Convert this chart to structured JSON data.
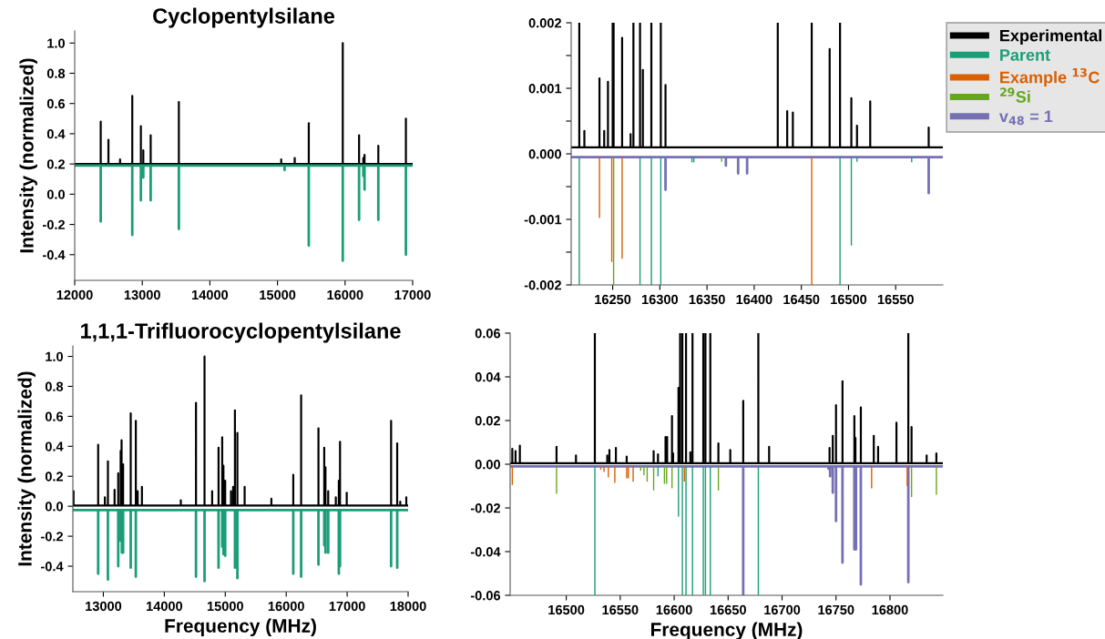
{
  "chart_data": [
    {
      "type": "line",
      "title": "Cyclopentylsilane",
      "ylabel": "Intensity (normalized)",
      "xlim": [
        12000,
        17000
      ],
      "ylim": [
        -0.57,
        1.08
      ],
      "xticks": [
        12000,
        13000,
        14000,
        15000,
        16000,
        17000
      ],
      "yticks": [
        -0.4,
        -0.2,
        {
          "value": 0,
          "label": "0.0"
        },
        0.2,
        0.4,
        0.6,
        0.8,
        {
          "value": 1,
          "label": "1.0"
        }
      ],
      "series": [
        {
          "color": "#000000",
          "x": [
            12000,
            12385,
            12385,
            12385,
            12499,
            12499,
            12499,
            12671,
            12671,
            12671,
            12852,
            12852,
            12852,
            12979,
            12979,
            12979,
            13015,
            13015,
            13015,
            13124,
            13124,
            13124,
            13541,
            13541,
            13541,
            15055,
            15055,
            15055,
            15255,
            15255,
            15255,
            15463,
            15463,
            15463,
            15966,
            15966,
            15966,
            16207,
            16207,
            16207,
            16270,
            16270,
            16270,
            16288,
            16288,
            16288,
            16492,
            16492,
            16492,
            16900,
            16900,
            16900,
            17000
          ],
          "values": [
            0.2,
            0.2,
            0.48,
            0.2,
            0.2,
            0.36,
            0.2,
            0.2,
            0.23,
            0.2,
            0.2,
            0.65,
            0.2,
            0.2,
            0.45,
            0.2,
            0.2,
            0.29,
            0.2,
            0.2,
            0.39,
            0.2,
            0.2,
            0.61,
            0.2,
            0.2,
            0.23,
            0.2,
            0.2,
            0.24,
            0.2,
            0.2,
            0.47,
            0.2,
            0.2,
            1.0,
            0.2,
            0.2,
            0.39,
            0.2,
            0.2,
            0.24,
            0.2,
            0.2,
            0.26,
            0.2,
            0.2,
            0.32,
            0.2,
            0.2,
            0.5,
            0.2,
            0.2
          ]
        },
        {
          "color": "#1b9e77",
          "x": [
            12000,
            12385,
            12385,
            12385,
            12852,
            12852,
            12852,
            12979,
            12979,
            12979,
            13015,
            13015,
            13015,
            13124,
            13124,
            13124,
            13541,
            13541,
            13541,
            15105,
            15105,
            15105,
            15463,
            15463,
            15463,
            15966,
            15966,
            15966,
            16207,
            16207,
            16207,
            16270,
            16270,
            16270,
            16288,
            16288,
            16288,
            16492,
            16492,
            16492,
            16900,
            16900,
            16900,
            17000
          ],
          "values": [
            0.19,
            0.19,
            -0.18,
            0.19,
            0.19,
            -0.27,
            0.19,
            0.19,
            -0.04,
            0.19,
            0.19,
            0.11,
            0.19,
            0.19,
            -0.04,
            0.19,
            0.19,
            -0.23,
            0.19,
            0.19,
            0.16,
            0.19,
            0.19,
            -0.34,
            0.19,
            0.19,
            -0.44,
            0.19,
            0.19,
            -0.17,
            0.19,
            0.19,
            0.12,
            0.19,
            0.19,
            0.03,
            0.19,
            0.19,
            -0.17,
            0.19,
            0.19,
            -0.4,
            0.19,
            0.19
          ]
        }
      ]
    },
    {
      "type": "line",
      "legend": "top right",
      "xlim": [
        16206,
        16600
      ],
      "ylim": [
        -0.002,
        0.002
      ],
      "xticks": [
        16250,
        16300,
        16350,
        16400,
        16450,
        16500,
        16550
      ],
      "yticks": [
        -0.002,
        {
          "value": -0.0015,
          "label": null
        },
        -0.001,
        {
          "value": -0.0005,
          "label": null
        },
        {
          "value": 0,
          "label": "0.000"
        },
        {
          "value": 0.0005,
          "label": null
        },
        0.001,
        {
          "value": 0.0015,
          "label": null
        },
        0.002
      ],
      "series": [
        {
          "name": "Experimental",
          "color": "#000000",
          "x": [
            16206,
            16214.6,
            16214.6,
            16214.6,
            16220,
            16220,
            16220,
            16236,
            16236,
            16236,
            16241,
            16241,
            16241,
            16245,
            16245,
            16245,
            16250,
            16250,
            16250,
            16251,
            16251,
            16251,
            16260,
            16260,
            16260,
            16269,
            16269,
            16269,
            16272,
            16272,
            16272,
            16279,
            16279,
            16279,
            16282,
            16282,
            16282,
            16291,
            16291,
            16291,
            16301,
            16301,
            16301,
            16306,
            16306,
            16306,
            16425,
            16425,
            16425,
            16435,
            16435,
            16435,
            16441,
            16441,
            16441,
            16461,
            16461,
            16461,
            16480,
            16480,
            16480,
            16491,
            16491,
            16491,
            16503,
            16503,
            16503,
            16509,
            16509,
            16509,
            16523,
            16523,
            16523,
            16585,
            16585,
            16585,
            16600
          ],
          "values": [
            0.0001,
            0.0001,
            0.002,
            0.0001,
            0.0001,
            0.00035,
            0.0001,
            0.0001,
            0.00115,
            0.0001,
            0.0001,
            0.00035,
            0.0001,
            0.0001,
            0.0011,
            0.0001,
            0.0001,
            0.002,
            0.0001,
            0.0001,
            0.002,
            0.0001,
            0.0001,
            0.00177,
            0.0001,
            0.0001,
            0.0003,
            0.0001,
            0.0001,
            0.002,
            0.0001,
            0.0001,
            0.002,
            0.0001,
            0.0001,
            0.00128,
            0.0001,
            0.0001,
            0.002,
            0.0001,
            0.0001,
            0.002,
            0.0001,
            0.0001,
            0.00105,
            0.0001,
            0.0001,
            0.002,
            0.0001,
            0.0001,
            0.00065,
            0.0001,
            0.0001,
            0.00063,
            0.0001,
            0.0001,
            0.002,
            0.0001,
            0.0001,
            0.0016,
            0.0001,
            0.0001,
            0.002,
            0.0001,
            0.0001,
            0.00085,
            0.0001,
            0.0001,
            0.00043,
            0.0001,
            0.0001,
            0.0008,
            0.0001,
            0.0001,
            0.0004,
            0.0001,
            0.0001
          ]
        },
        {
          "type": "bar",
          "name": "Parent",
          "color": "#1b9e77",
          "x": [
            16214.6,
            16279,
            16291,
            16301,
            16334,
            16336,
            16491,
            16503,
            16509,
            16567
          ],
          "base": [
            -5e-05,
            -5e-05,
            -5e-05,
            -5e-05,
            -5e-05,
            -5e-05,
            -5e-05,
            -5e-05,
            -5e-05,
            -5e-05
          ],
          "values": [
            -0.00195,
            -0.00195,
            -0.00195,
            -0.00195,
            -8e-05,
            -8e-05,
            -0.00195,
            -0.00135,
            -7e-05,
            -8e-05
          ]
        },
        {
          "type": "bar",
          "name": "Example $^{13}$C",
          "color": "#d95f02",
          "x": [
            16236,
            16249,
            16260,
            16461
          ],
          "base": [
            -5e-05,
            -5e-05,
            -5e-05,
            -5e-05
          ],
          "values": [
            -0.00093,
            -0.0016,
            -0.00155,
            -0.00195
          ]
        },
        {
          "type": "bar",
          "name": "$^{29}$Si",
          "color": "#66a61e",
          "x": [
            16251,
            16365.5
          ],
          "base": [
            -5e-05,
            -5e-05
          ],
          "values": [
            -0.00195,
            -7e-05
          ]
        },
        {
          "name": "v$_{48}$ = 1",
          "color": "#7570b3",
          "x": [
            16206,
            16306,
            16306,
            16306,
            16370,
            16370,
            16370,
            16383,
            16383,
            16383,
            16392.5,
            16392.5,
            16392.5,
            16585,
            16585,
            16585,
            16600
          ],
          "values": [
            -5e-05,
            -5e-05,
            -0.00055,
            -5e-05,
            -5e-05,
            -0.00018,
            -5e-05,
            -5e-05,
            -0.0003,
            -5e-05,
            -5e-05,
            -0.0003,
            -5e-05,
            -5e-05,
            -0.0006,
            -5e-05,
            -5e-05
          ]
        }
      ]
    },
    {
      "type": "line",
      "title": "1,1,1-Trifluorocyclopentylsilane",
      "xlabel": "Frequency (MHz)",
      "ylabel": "Intensity (normalized)",
      "xlim": [
        12500,
        18000
      ],
      "ylim": [
        -0.57,
        1.07
      ],
      "xticks": [
        13000,
        14000,
        15000,
        16000,
        17000,
        18000
      ],
      "yticks": [
        -0.4,
        -0.2,
        {
          "value": 0,
          "label": "0.0"
        },
        0.2,
        0.4,
        0.6,
        0.8,
        {
          "value": 1,
          "label": "1.0"
        }
      ],
      "series": [
        {
          "color": "#000000",
          "x": [
            12500,
            12511,
            12511,
            12511,
            12915,
            12915,
            12915,
            13025,
            13025,
            13025,
            13075,
            13075,
            13075,
            13184,
            13184,
            13184,
            13244,
            13244,
            13244,
            13284,
            13284,
            13284,
            13299,
            13299,
            13299,
            13324,
            13324,
            13324,
            13449,
            13449,
            13449,
            13533,
            13533,
            13533,
            13563,
            13563,
            13563,
            13633,
            13633,
            13633,
            14271,
            14271,
            14271,
            14520,
            14520,
            14520,
            14660,
            14660,
            14660,
            14785,
            14785,
            14785,
            14890,
            14890,
            14890,
            14950,
            14950,
            14950,
            14970,
            14970,
            14970,
            14999,
            14999,
            14999,
            15094,
            15094,
            15094,
            15129,
            15129,
            15129,
            15159,
            15159,
            15159,
            15199,
            15199,
            15199,
            15318,
            15318,
            15318,
            15757,
            15757,
            15757,
            16116,
            16116,
            16116,
            16245,
            16245,
            16245,
            16529,
            16529,
            16529,
            16624,
            16624,
            16624,
            16644,
            16644,
            16644,
            16689,
            16689,
            16689,
            16814,
            16814,
            16814,
            16863,
            16863,
            16863,
            16883,
            16883,
            16883,
            16993,
            16993,
            16993,
            17721,
            17721,
            17721,
            17821,
            17821,
            17821,
            17871,
            17871,
            17871,
            17970,
            17970,
            17970,
            18000
          ],
          "values": [
            0.005,
            0.005,
            0.1,
            0.005,
            0.005,
            0.41,
            0.005,
            0.005,
            0.06,
            0.005,
            0.005,
            0.3,
            0.005,
            0.005,
            0.11,
            0.005,
            0.005,
            0.22,
            0.005,
            0.005,
            0.37,
            0.005,
            0.005,
            0.44,
            0.005,
            0.005,
            0.28,
            0.005,
            0.005,
            0.62,
            0.005,
            0.005,
            0.57,
            0.005,
            0.005,
            0.1,
            0.005,
            0.005,
            0.13,
            0.005,
            0.005,
            0.04,
            0.005,
            0.005,
            0.69,
            0.005,
            0.005,
            1.0,
            0.005,
            0.005,
            0.1,
            0.005,
            0.005,
            0.39,
            0.005,
            0.005,
            0.46,
            0.005,
            0.005,
            0.27,
            0.005,
            0.005,
            0.17,
            0.005,
            0.005,
            0.1,
            0.005,
            0.005,
            0.13,
            0.005,
            0.005,
            0.64,
            0.005,
            0.005,
            0.49,
            0.005,
            0.005,
            0.13,
            0.005,
            0.005,
            0.05,
            0.005,
            0.005,
            0.21,
            0.005,
            0.005,
            0.74,
            0.005,
            0.005,
            0.52,
            0.005,
            0.005,
            0.39,
            0.005,
            0.005,
            0.26,
            0.005,
            0.005,
            0.1,
            0.005,
            0.005,
            0.06,
            0.005,
            0.005,
            0.17,
            0.005,
            0.005,
            0.43,
            0.005,
            0.005,
            0.09,
            0.005,
            0.005,
            0.57,
            0.005,
            0.005,
            0.42,
            0.005,
            0.005,
            0.03,
            0.005,
            0.005,
            0.06,
            0.005,
            0.005
          ]
        },
        {
          "color": "#1b9e77",
          "x": [
            12500,
            12915,
            12915,
            12915,
            13075,
            13075,
            13075,
            13244,
            13244,
            13244,
            13284,
            13284,
            13284,
            13304,
            13304,
            13304,
            13324,
            13324,
            13324,
            13449,
            13449,
            13449,
            13533,
            13533,
            13533,
            14520,
            14520,
            14520,
            14660,
            14660,
            14660,
            14890,
            14890,
            14890,
            14950,
            14950,
            14950,
            14970,
            14970,
            14970,
            14999,
            14999,
            14999,
            15159,
            15159,
            15159,
            15199,
            15199,
            15199,
            16116,
            16116,
            16116,
            16245,
            16245,
            16245,
            16529,
            16529,
            16529,
            16624,
            16624,
            16624,
            16644,
            16644,
            16644,
            16689,
            16689,
            16689,
            16863,
            16863,
            16863,
            16883,
            16883,
            16883,
            17721,
            17721,
            17721,
            17821,
            17821,
            17821,
            18000
          ],
          "values": [
            -0.025,
            -0.025,
            -0.45,
            -0.025,
            -0.025,
            -0.49,
            -0.025,
            -0.025,
            -0.4,
            -0.025,
            -0.025,
            -0.23,
            -0.025,
            -0.025,
            -0.31,
            -0.025,
            -0.025,
            -0.31,
            -0.025,
            -0.025,
            -0.41,
            -0.025,
            -0.025,
            -0.47,
            -0.025,
            -0.025,
            -0.47,
            -0.025,
            -0.025,
            -0.5,
            -0.025,
            -0.025,
            -0.41,
            -0.025,
            -0.025,
            -0.27,
            -0.025,
            -0.025,
            -0.32,
            -0.025,
            -0.025,
            -0.33,
            -0.025,
            -0.025,
            -0.41,
            -0.025,
            -0.025,
            -0.48,
            -0.025,
            -0.025,
            -0.45,
            -0.025,
            -0.025,
            -0.47,
            -0.025,
            -0.025,
            -0.39,
            -0.025,
            -0.025,
            -0.26,
            -0.025,
            -0.025,
            -0.31,
            -0.025,
            -0.025,
            -0.31,
            -0.025,
            -0.025,
            -0.45,
            -0.025,
            -0.025,
            -0.4,
            -0.025,
            -0.025,
            -0.4,
            -0.025,
            -0.025,
            -0.41,
            -0.025,
            -0.025
          ]
        }
      ]
    },
    {
      "type": "line",
      "xlabel": "Frequency (MHz)",
      "xlim": [
        16448,
        16849
      ],
      "ylim": [
        -0.06,
        0.06
      ],
      "xticks": [
        16500,
        16550,
        16600,
        16650,
        16700,
        16750,
        16800
      ],
      "yticks": [
        -0.06,
        -0.04,
        -0.02,
        {
          "value": 0,
          "label": "0.00"
        },
        0.02,
        0.04,
        0.06
      ],
      "series": [
        {
          "color": "#000000",
          "x": [
            16448,
            16450,
            16450,
            16450,
            16453,
            16453,
            16453,
            16457,
            16457,
            16457,
            16491,
            16491,
            16491,
            16509,
            16509,
            16509,
            16526.5,
            16526.5,
            16526.5,
            16538,
            16538,
            16538,
            16540,
            16540,
            16540,
            16546,
            16546,
            16546,
            16556,
            16556,
            16556,
            16581,
            16581,
            16581,
            16585,
            16585,
            16585,
            16592,
            16592,
            16592,
            16593.5,
            16593.5,
            16593.5,
            16598,
            16598,
            16598,
            16599,
            16599,
            16599,
            16604,
            16604,
            16604,
            16605.5,
            16605.5,
            16605.5,
            16607.6,
            16607.6,
            16607.6,
            16611,
            16611,
            16611,
            16615,
            16615,
            16615,
            16617,
            16617,
            16617,
            16627,
            16627,
            16627,
            16629,
            16629,
            16629,
            16633.5,
            16633.5,
            16633.5,
            16641,
            16641,
            16641,
            16652,
            16652,
            16652,
            16664,
            16664,
            16664,
            16678,
            16678,
            16678,
            16688,
            16688,
            16688,
            16744,
            16744,
            16744,
            16747,
            16747,
            16747,
            16750,
            16750,
            16750,
            16756,
            16756,
            16756,
            16767,
            16767,
            16767,
            16768,
            16768,
            16768,
            16773,
            16773,
            16773,
            16785,
            16785,
            16785,
            16789,
            16789,
            16789,
            16806,
            16806,
            16806,
            16817,
            16817,
            16817,
            16820,
            16820,
            16820,
            16834,
            16834,
            16834,
            16843,
            16843,
            16843,
            16849
          ],
          "values": [
            0.0005,
            0.0005,
            0.007,
            0.0005,
            0.0005,
            0.006,
            0.0005,
            0.0005,
            0.0085,
            0.0005,
            0.0005,
            0.008,
            0.0005,
            0.0005,
            0.004,
            0.0005,
            0.0005,
            0.06,
            0.0005,
            0.0005,
            0.004,
            0.0005,
            0.0005,
            0.0065,
            0.0005,
            0.0005,
            0.0075,
            0.0005,
            0.0005,
            0.0035,
            0.0005,
            0.0005,
            0.006,
            0.0005,
            0.0005,
            0.0045,
            0.0005,
            0.0005,
            0.0125,
            0.0005,
            0.0005,
            0.0125,
            0.0005,
            0.0005,
            0.022,
            0.0005,
            0.0005,
            0.005,
            0.0005,
            0.0005,
            0.035,
            0.0005,
            0.0005,
            0.06,
            0.0005,
            0.0005,
            0.06,
            0.0005,
            0.0005,
            0.06,
            0.0005,
            0.0005,
            0.0055,
            0.0005,
            0.0005,
            0.06,
            0.0005,
            0.0005,
            0.06,
            0.0005,
            0.0005,
            0.06,
            0.0005,
            0.0005,
            0.06,
            0.0005,
            0.0005,
            0.0095,
            0.0005,
            0.0005,
            0.0065,
            0.0005,
            0.0005,
            0.029,
            0.0005,
            0.0005,
            0.06,
            0.0005,
            0.0005,
            0.008,
            0.0005,
            0.0005,
            0.0075,
            0.0005,
            0.0005,
            0.013,
            0.0005,
            0.0005,
            0.027,
            0.0005,
            0.0005,
            0.038,
            0.0005,
            0.0005,
            0.022,
            0.0005,
            0.0005,
            0.012,
            0.0005,
            0.0005,
            0.026,
            0.0005,
            0.0005,
            0.013,
            0.0005,
            0.0005,
            0.008,
            0.0005,
            0.0005,
            0.019,
            0.0005,
            0.0005,
            0.06,
            0.0005,
            0.0005,
            0.017,
            0.0005,
            0.0005,
            0.004,
            0.0005,
            0.0005,
            0.005,
            0.0005,
            0.0005
          ]
        },
        {
          "type": "bar",
          "color": "#1b9e77",
          "x": [
            16526.5,
            16585,
            16604,
            16607.6,
            16611,
            16617,
            16627,
            16629,
            16633.5,
            16678
          ],
          "base": [
            -0.001,
            -0.001,
            -0.001,
            -0.001,
            -0.001,
            -0.001,
            -0.001,
            -0.001,
            -0.001,
            -0.001
          ],
          "values": [
            -0.059,
            -0.0045,
            -0.023,
            -0.059,
            -0.059,
            -0.059,
            -0.059,
            -0.059,
            -0.059,
            -0.059
          ]
        },
        {
          "type": "bar",
          "color": "#d95f02",
          "x": [
            16450,
            16532,
            16535,
            16539,
            16545,
            16556,
            16557.5,
            16562,
            16609.5,
            16783,
            16816
          ],
          "base": [
            -0.001,
            -0.001,
            -0.001,
            -0.001,
            -0.001,
            -0.001,
            -0.001,
            -0.001,
            -0.001,
            -0.001,
            -0.001
          ],
          "values": [
            -0.0085,
            -0.0015,
            -0.0025,
            -0.005,
            -0.0075,
            -0.0055,
            -0.0055,
            -0.007,
            -0.007,
            -0.01,
            -0.009
          ]
        },
        {
          "type": "bar",
          "color": "#66a61e",
          "x": [
            16491,
            16569,
            16572,
            16575,
            16581,
            16591,
            16593,
            16598,
            16641,
            16820,
            16843
          ],
          "base": [
            -0.001,
            -0.001,
            -0.001,
            -0.001,
            -0.001,
            -0.001,
            -0.001,
            -0.001,
            -0.001,
            -0.001,
            -0.001
          ],
          "values": [
            -0.0125,
            -0.002,
            -0.004,
            -0.007,
            -0.011,
            -0.008,
            -0.008,
            -0.01,
            -0.011,
            -0.014,
            -0.013
          ]
        },
        {
          "color": "#7570b3",
          "x": [
            16448,
            16664,
            16664,
            16664,
            16743,
            16743,
            16743,
            16744.5,
            16744.5,
            16744.5,
            16747,
            16747,
            16747,
            16750,
            16750,
            16750,
            16756,
            16756,
            16756,
            16767,
            16767,
            16767,
            16768.5,
            16768.5,
            16768.5,
            16773,
            16773,
            16773,
            16817,
            16817,
            16817,
            16849
          ],
          "values": [
            -0.001,
            -0.001,
            -0.06,
            -0.001,
            -0.001,
            -0.002,
            -0.001,
            -0.001,
            -0.0055,
            -0.001,
            -0.001,
            -0.013,
            -0.001,
            -0.001,
            -0.026,
            -0.001,
            -0.001,
            -0.045,
            -0.001,
            -0.001,
            -0.039,
            -0.001,
            -0.001,
            -0.039,
            -0.001,
            -0.001,
            -0.055,
            -0.001,
            -0.001,
            -0.054,
            -0.001,
            -0.001
          ]
        }
      ]
    }
  ]
}
